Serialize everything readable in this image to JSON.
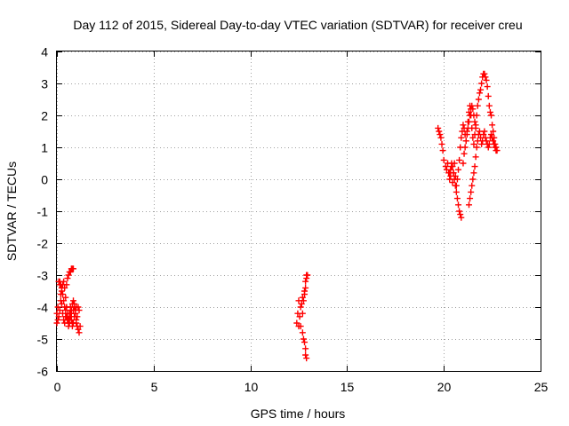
{
  "chart_data": {
    "type": "scatter",
    "title": "Day 112 of 2015, Sidereal Day-to-day VTEC variation (SDTVAR) for receiver creu",
    "xlabel": "GPS time / hours",
    "ylabel": "SDTVAR / TECUs",
    "xlim": [
      0,
      25
    ],
    "ylim": [
      -6,
      4
    ],
    "x_ticks": [
      "0",
      "5",
      "10",
      "15",
      "20",
      "25"
    ],
    "y_ticks": [
      "-6",
      "-5",
      "-4",
      "-3",
      "-2",
      "-1",
      "0",
      "1",
      "2",
      "3",
      "4"
    ],
    "grid": true,
    "marker": "plus",
    "color": "#ff0000",
    "series": [
      {
        "x": [
          0.0,
          0.05,
          0.1,
          0.15,
          0.2,
          0.25,
          0.3,
          0.35,
          0.4,
          0.45,
          0.5,
          0.55,
          0.6,
          0.65,
          0.7,
          0.75,
          0.8,
          0.85,
          0.9,
          0.95,
          1.0,
          1.05,
          1.1,
          1.15,
          1.2,
          0.0,
          0.05,
          0.1,
          0.15,
          0.2,
          0.25,
          0.3,
          0.35,
          0.4,
          0.45,
          0.5,
          0.55,
          0.6,
          0.65,
          0.7,
          0.75,
          0.8,
          0.85,
          0.9,
          0.95,
          1.0,
          1.05,
          1.1,
          1.15,
          0.1,
          0.15,
          0.2,
          0.25,
          0.3,
          0.35,
          0.4,
          0.45,
          0.5,
          0.55,
          0.6,
          0.65,
          0.7,
          0.75,
          0.8,
          0.85,
          0.9,
          0.95,
          1.0,
          0.5,
          0.55,
          0.6,
          0.65,
          0.7,
          0.75,
          0.8,
          0.85,
          12.4,
          12.45,
          12.5,
          12.5,
          12.55,
          12.6,
          12.6,
          12.65,
          12.7,
          12.7,
          12.75,
          12.8,
          12.8,
          12.85,
          12.85,
          12.9,
          12.9,
          12.95,
          12.7,
          12.75,
          12.8,
          12.85,
          12.85,
          12.9,
          19.7,
          19.75,
          19.8,
          19.85,
          19.9,
          19.95,
          20.0,
          20.1,
          20.15,
          20.2,
          20.25,
          20.3,
          20.35,
          20.4,
          20.45,
          20.5,
          20.55,
          20.6,
          20.65,
          20.7,
          20.75,
          20.8,
          20.85,
          20.9,
          20.95,
          21.0,
          21.05,
          21.1,
          21.15,
          21.2,
          21.25,
          21.3,
          21.35,
          21.4,
          21.45,
          21.5,
          21.55,
          21.6,
          21.65,
          21.7,
          21.75,
          21.8,
          21.85,
          21.9,
          21.95,
          22.0,
          22.05,
          22.1,
          22.15,
          22.2,
          22.25,
          22.3,
          22.35,
          22.4,
          22.45,
          22.5,
          22.55,
          22.6,
          22.65,
          22.7,
          22.75,
          20.3,
          20.35,
          20.4,
          20.45,
          20.5,
          20.55,
          20.6,
          20.65,
          20.7,
          20.75,
          20.8,
          20.85,
          20.9,
          21.3,
          21.35,
          21.4,
          21.45,
          21.5,
          21.55,
          21.6,
          21.65,
          21.7,
          21.75,
          21.8,
          21.85,
          21.9,
          21.95,
          22.0,
          22.05,
          22.1,
          22.15,
          22.2,
          22.25,
          22.3,
          22.35,
          22.4,
          22.45,
          22.5,
          22.55,
          22.6,
          22.65,
          22.7,
          21.0,
          21.05,
          21.1,
          21.15,
          21.2,
          21.25,
          21.3,
          21.35,
          21.4,
          21.45,
          21.5,
          21.55,
          21.6,
          21.65
        ],
        "y": [
          -4.5,
          -4.0,
          -3.2,
          -3.3,
          -3.6,
          -3.9,
          -4.2,
          -4.4,
          -4.5,
          -4.3,
          -4.0,
          -4.4,
          -4.6,
          -4.2,
          -4.0,
          -4.3,
          -4.5,
          -4.1,
          -3.9,
          -4.2,
          -4.5,
          -4.6,
          -4.7,
          -4.8,
          -4.6,
          -4.2,
          -4.4,
          -4.3,
          -4.1,
          -3.8,
          -3.5,
          -3.3,
          -3.2,
          -3.4,
          -3.7,
          -4.0,
          -4.2,
          -4.4,
          -4.5,
          -4.3,
          -4.1,
          -3.9,
          -3.8,
          -4.0,
          -4.2,
          -4.4,
          -4.3,
          -4.0,
          -4.1,
          -3.2,
          -3.2,
          -3.3,
          -3.4,
          -3.6,
          -3.8,
          -4.0,
          -4.1,
          -4.3,
          -4.4,
          -4.5,
          -4.3,
          -4.2,
          -4.4,
          -4.6,
          -4.5,
          -4.3,
          -4.1,
          -4.0,
          -3.3,
          -3.1,
          -3.0,
          -2.9,
          -2.9,
          -2.8,
          -2.8,
          -2.8,
          -4.5,
          -4.2,
          -3.8,
          -4.6,
          -4.3,
          -4.0,
          -4.6,
          -3.9,
          -4.2,
          -3.7,
          -3.8,
          -3.6,
          -3.5,
          -3.4,
          -3.2,
          -3.1,
          -3.0,
          -3.0,
          -4.8,
          -5.0,
          -5.1,
          -5.3,
          -5.5,
          -5.6,
          1.6,
          1.5,
          1.4,
          1.3,
          1.1,
          0.9,
          0.6,
          0.4,
          0.3,
          0.5,
          0.2,
          0.0,
          0.1,
          0.4,
          -0.1,
          0.2,
          0.5,
          0.1,
          -0.2,
          0.0,
          0.3,
          0.6,
          1.0,
          1.3,
          1.5,
          1.7,
          1.6,
          1.4,
          1.2,
          1.5,
          1.8,
          2.1,
          2.3,
          2.0,
          1.6,
          1.3,
          1.1,
          1.4,
          1.7,
          2.0,
          2.3,
          2.5,
          2.7,
          2.8,
          3.0,
          3.2,
          3.3,
          3.3,
          3.2,
          3.1,
          2.9,
          2.6,
          2.3,
          2.1,
          2.0,
          1.7,
          1.5,
          1.3,
          1.1,
          1.0,
          0.9,
          0.2,
          0.3,
          0.5,
          0.4,
          0.2,
          0.0,
          -0.2,
          -0.4,
          -0.6,
          -0.8,
          -1.0,
          -1.1,
          -1.2,
          -0.8,
          -0.6,
          -0.4,
          -0.2,
          0.0,
          0.2,
          0.4,
          0.7,
          1.0,
          1.2,
          1.4,
          1.5,
          1.3,
          1.1,
          1.2,
          1.4,
          1.5,
          1.3,
          1.2,
          1.1,
          1.0,
          1.1,
          1.3,
          1.4,
          1.3,
          1.2,
          1.1,
          1.0,
          0.9,
          0.5,
          0.8,
          1.0,
          1.2,
          1.4,
          1.6,
          1.8,
          2.0,
          2.2,
          2.3,
          2.2,
          2.0,
          1.8,
          1.6
        ]
      }
    ]
  }
}
